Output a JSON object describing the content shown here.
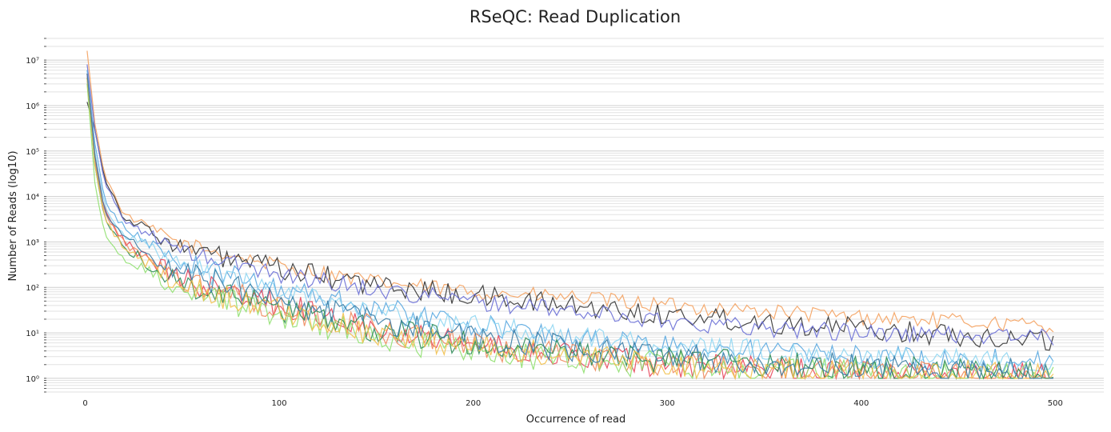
{
  "chart_data": {
    "type": "line",
    "title": "RSeQC: Read Duplication",
    "xlabel": "Occurrence of read",
    "ylabel": "Number of Reads (log10)",
    "xlim": [
      -20,
      525
    ],
    "ylim": [
      0.5,
      30000000
    ],
    "y_scale": "log10",
    "grid": true,
    "legend": "none",
    "x_ticks": [
      0,
      100,
      200,
      300,
      400,
      500
    ],
    "y_ticks": [
      1,
      10,
      100,
      1000,
      10000,
      100000,
      1000000,
      10000000
    ],
    "y_tick_labels": [
      "10⁰",
      "10¹",
      "10²",
      "10³",
      "10⁴",
      "10⁵",
      "10⁶",
      "10⁷"
    ],
    "series": [
      {
        "color": "#f4a261",
        "points": [
          [
            1,
            16000000
          ],
          [
            5,
            400000
          ],
          [
            10,
            30000
          ],
          [
            20,
            4000
          ],
          [
            50,
            900
          ],
          [
            100,
            300
          ],
          [
            150,
            130
          ],
          [
            200,
            80
          ],
          [
            250,
            60
          ],
          [
            300,
            40
          ],
          [
            350,
            30
          ],
          [
            400,
            22
          ],
          [
            450,
            18
          ],
          [
            500,
            14
          ]
        ],
        "noise": 0.35
      },
      {
        "color": "#333333",
        "points": [
          [
            1,
            1200000
          ],
          [
            5,
            300000
          ],
          [
            10,
            25000
          ],
          [
            20,
            3500
          ],
          [
            50,
            700
          ],
          [
            100,
            250
          ],
          [
            150,
            110
          ],
          [
            200,
            65
          ],
          [
            250,
            40
          ],
          [
            300,
            25
          ],
          [
            350,
            18
          ],
          [
            400,
            12
          ],
          [
            450,
            9
          ],
          [
            500,
            7
          ]
        ],
        "noise": 0.5
      },
      {
        "color": "#6b70d6",
        "points": [
          [
            1,
            8000000
          ],
          [
            5,
            300000
          ],
          [
            10,
            20000
          ],
          [
            20,
            3000
          ],
          [
            50,
            600
          ],
          [
            100,
            200
          ],
          [
            150,
            90
          ],
          [
            200,
            50
          ],
          [
            250,
            30
          ],
          [
            300,
            18
          ],
          [
            350,
            13
          ],
          [
            400,
            10
          ],
          [
            450,
            9
          ],
          [
            500,
            8
          ]
        ],
        "noise": 0.4
      },
      {
        "color": "#5aa8e0",
        "points": [
          [
            1,
            6000000
          ],
          [
            5,
            150000
          ],
          [
            10,
            8000
          ],
          [
            20,
            2000
          ],
          [
            50,
            350
          ],
          [
            100,
            100
          ],
          [
            150,
            35
          ],
          [
            200,
            15
          ],
          [
            250,
            8
          ],
          [
            300,
            5
          ],
          [
            350,
            4
          ],
          [
            400,
            3
          ],
          [
            450,
            2.5
          ],
          [
            500,
            2.5
          ]
        ],
        "noise": 0.5
      },
      {
        "color": "#8fd6f2",
        "points": [
          [
            1,
            5000000
          ],
          [
            5,
            100000
          ],
          [
            10,
            6000
          ],
          [
            20,
            1500
          ],
          [
            50,
            280
          ],
          [
            100,
            80
          ],
          [
            150,
            30
          ],
          [
            200,
            14
          ],
          [
            250,
            8
          ],
          [
            300,
            5
          ],
          [
            350,
            4
          ],
          [
            400,
            3
          ],
          [
            450,
            2.5
          ],
          [
            500,
            2
          ]
        ],
        "noise": 0.5
      },
      {
        "color": "#e8455a",
        "points": [
          [
            1,
            5000000
          ],
          [
            5,
            80000
          ],
          [
            10,
            5000
          ],
          [
            20,
            1000
          ],
          [
            50,
            150
          ],
          [
            100,
            40
          ],
          [
            150,
            15
          ],
          [
            200,
            6
          ],
          [
            250,
            3
          ],
          [
            300,
            2
          ],
          [
            350,
            1.5
          ],
          [
            400,
            1.3
          ],
          [
            450,
            1.2
          ],
          [
            500,
            1.1
          ]
        ],
        "noise": 0.6
      },
      {
        "color": "#f08a5d",
        "points": [
          [
            1,
            4000000
          ],
          [
            5,
            60000
          ],
          [
            10,
            4000
          ],
          [
            20,
            900
          ],
          [
            50,
            140
          ],
          [
            100,
            35
          ],
          [
            150,
            12
          ],
          [
            200,
            5
          ],
          [
            250,
            3
          ],
          [
            300,
            2
          ],
          [
            350,
            1.5
          ],
          [
            400,
            1.3
          ],
          [
            450,
            1.2
          ],
          [
            500,
            1.1
          ]
        ],
        "noise": 0.6
      },
      {
        "color": "#90e070",
        "points": [
          [
            1,
            3000000
          ],
          [
            5,
            20000
          ],
          [
            10,
            1500
          ],
          [
            20,
            400
          ],
          [
            50,
            90
          ],
          [
            100,
            25
          ],
          [
            150,
            8
          ],
          [
            200,
            4
          ],
          [
            250,
            2.5
          ],
          [
            300,
            2
          ],
          [
            350,
            1.5
          ],
          [
            400,
            1.3
          ],
          [
            450,
            1.2
          ],
          [
            500,
            1.1
          ]
        ],
        "noise": 0.6
      },
      {
        "color": "#2e8b57",
        "points": [
          [
            1,
            4000000
          ],
          [
            5,
            50000
          ],
          [
            10,
            3000
          ],
          [
            20,
            700
          ],
          [
            50,
            120
          ],
          [
            100,
            35
          ],
          [
            150,
            12
          ],
          [
            200,
            6
          ],
          [
            250,
            3.5
          ],
          [
            300,
            2.5
          ],
          [
            350,
            2
          ],
          [
            400,
            1.6
          ],
          [
            450,
            1.4
          ],
          [
            500,
            1.3
          ]
        ],
        "noise": 0.6
      },
      {
        "color": "#f2c14e",
        "points": [
          [
            1,
            4000000
          ],
          [
            5,
            50000
          ],
          [
            10,
            3000
          ],
          [
            20,
            700
          ],
          [
            50,
            110
          ],
          [
            100,
            30
          ],
          [
            150,
            10
          ],
          [
            200,
            5
          ],
          [
            250,
            3
          ],
          [
            300,
            2
          ],
          [
            350,
            1.6
          ],
          [
            400,
            1.4
          ],
          [
            450,
            1.3
          ],
          [
            500,
            1.2
          ]
        ],
        "noise": 0.6
      },
      {
        "color": "#3a7ca5",
        "points": [
          [
            1,
            5000000
          ],
          [
            5,
            80000
          ],
          [
            10,
            5000
          ],
          [
            20,
            1200
          ],
          [
            50,
            200
          ],
          [
            100,
            50
          ],
          [
            150,
            18
          ],
          [
            200,
            8
          ],
          [
            250,
            4.5
          ],
          [
            300,
            3
          ],
          [
            350,
            2.2
          ],
          [
            400,
            1.8
          ],
          [
            450,
            1.5
          ],
          [
            500,
            1.4
          ]
        ],
        "noise": 0.6
      }
    ]
  }
}
